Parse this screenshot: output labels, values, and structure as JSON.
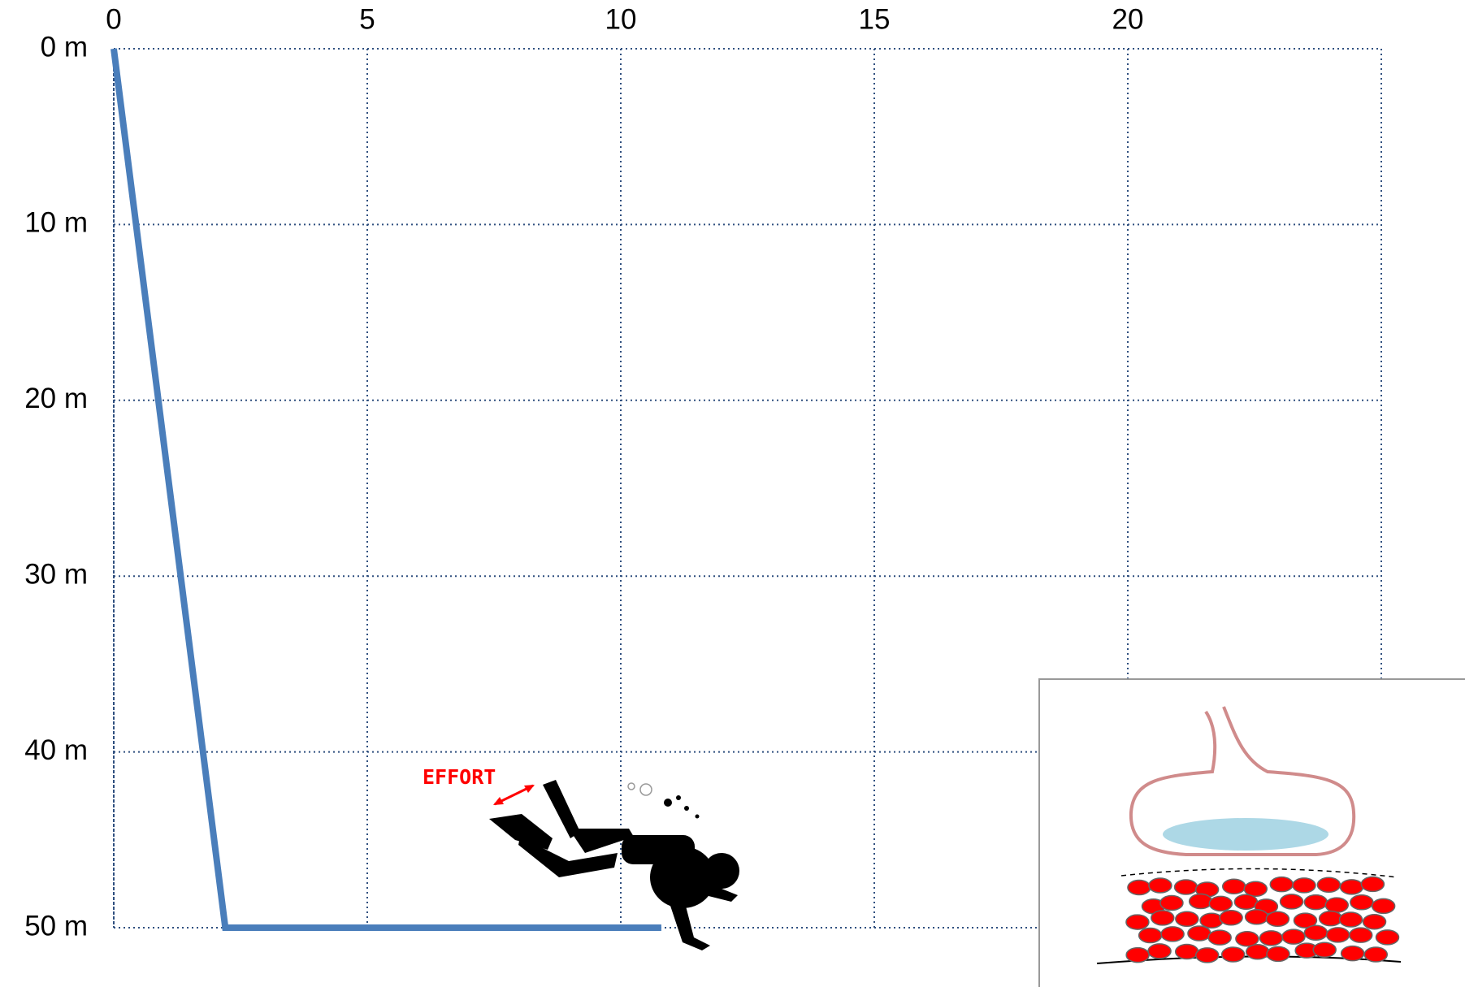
{
  "chart_data": {
    "type": "line",
    "x": [
      0,
      2.2,
      10.8
    ],
    "series": [
      {
        "color": "#4a7ebb",
        "values": [
          0,
          50,
          50
        ]
      }
    ],
    "xlim": [
      0,
      25
    ],
    "xticks": [
      0,
      5,
      10,
      15,
      20
    ],
    "ylim": [
      0,
      50
    ],
    "invert_y": true,
    "yticks": [
      {
        "value": 0,
        "label": "0 m"
      },
      {
        "value": 10,
        "label": "10 m"
      },
      {
        "value": 20,
        "label": "20 m"
      },
      {
        "value": 30,
        "label": "30 m"
      },
      {
        "value": 40,
        "label": "40 m"
      },
      {
        "value": 50,
        "label": "50 m"
      }
    ],
    "grid": true,
    "annotation": "EFFORT"
  }
}
